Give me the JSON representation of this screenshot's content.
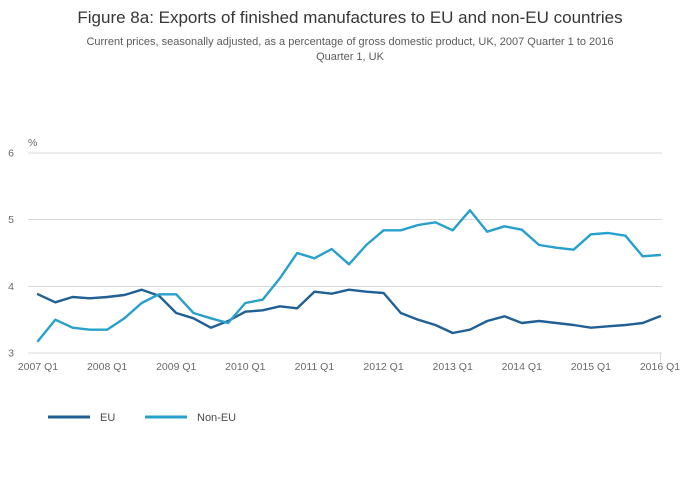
{
  "page": {
    "title": "Figure 8a: Exports of finished manufactures to EU and non-EU countries",
    "subtitle_lines": [
      "Current prices, seasonally adjusted, as a percentage of gross domestic product, UK, 2007 Quarter 1 to 2016",
      "Quarter 1, UK"
    ]
  },
  "chart_data": {
    "type": "line",
    "title": "Figure 8a: Exports of finished manufactures to EU and non-EU countries",
    "subtitle": "Current prices, seasonally adjusted, as a percentage of gross domestic product, UK, 2007 Quarter 1 to 2016 Quarter 1, UK",
    "y_unit_label": "%",
    "ylim": [
      3,
      6
    ],
    "y_ticks": [
      3,
      4,
      5,
      6
    ],
    "grid": true,
    "legend_position": "bottom-left",
    "x": [
      "2007 Q1",
      "2007 Q2",
      "2007 Q3",
      "2007 Q4",
      "2008 Q1",
      "2008 Q2",
      "2008 Q3",
      "2008 Q4",
      "2009 Q1",
      "2009 Q2",
      "2009 Q3",
      "2009 Q4",
      "2010 Q1",
      "2010 Q2",
      "2010 Q3",
      "2010 Q4",
      "2011 Q1",
      "2011 Q2",
      "2011 Q3",
      "2011 Q4",
      "2012 Q1",
      "2012 Q2",
      "2012 Q3",
      "2012 Q4",
      "2013 Q1",
      "2013 Q2",
      "2013 Q3",
      "2013 Q4",
      "2014 Q1",
      "2014 Q2",
      "2014 Q3",
      "2014 Q4",
      "2015 Q1",
      "2015 Q2",
      "2015 Q3",
      "2015 Q4",
      "2016 Q1"
    ],
    "x_tick_labels": [
      "2007 Q1",
      "2008 Q1",
      "2009 Q1",
      "2010 Q1",
      "2011 Q1",
      "2012 Q1",
      "2013 Q1",
      "2014 Q1",
      "2015 Q1",
      "2016 Q1"
    ],
    "series": [
      {
        "name": "EU",
        "color": "#206095",
        "values": [
          3.88,
          3.76,
          3.84,
          3.82,
          3.84,
          3.87,
          3.95,
          3.86,
          3.6,
          3.52,
          3.38,
          3.48,
          3.62,
          3.64,
          3.7,
          3.67,
          3.92,
          3.89,
          3.95,
          3.92,
          3.9,
          3.6,
          3.5,
          3.42,
          3.3,
          3.35,
          3.48,
          3.55,
          3.45,
          3.48,
          3.45,
          3.42,
          3.38,
          3.4,
          3.42,
          3.45,
          3.55
        ]
      },
      {
        "name": "Non-EU",
        "color": "#27a0cc",
        "values": [
          3.18,
          3.5,
          3.38,
          3.35,
          3.35,
          3.52,
          3.75,
          3.88,
          3.88,
          3.6,
          3.52,
          3.45,
          3.75,
          3.8,
          4.12,
          4.5,
          4.42,
          4.56,
          4.33,
          4.62,
          4.84,
          4.84,
          4.92,
          4.96,
          4.84,
          5.14,
          4.82,
          4.9,
          4.85,
          4.62,
          4.58,
          4.55,
          4.78,
          4.8,
          4.76,
          4.45,
          4.47
        ]
      }
    ]
  }
}
